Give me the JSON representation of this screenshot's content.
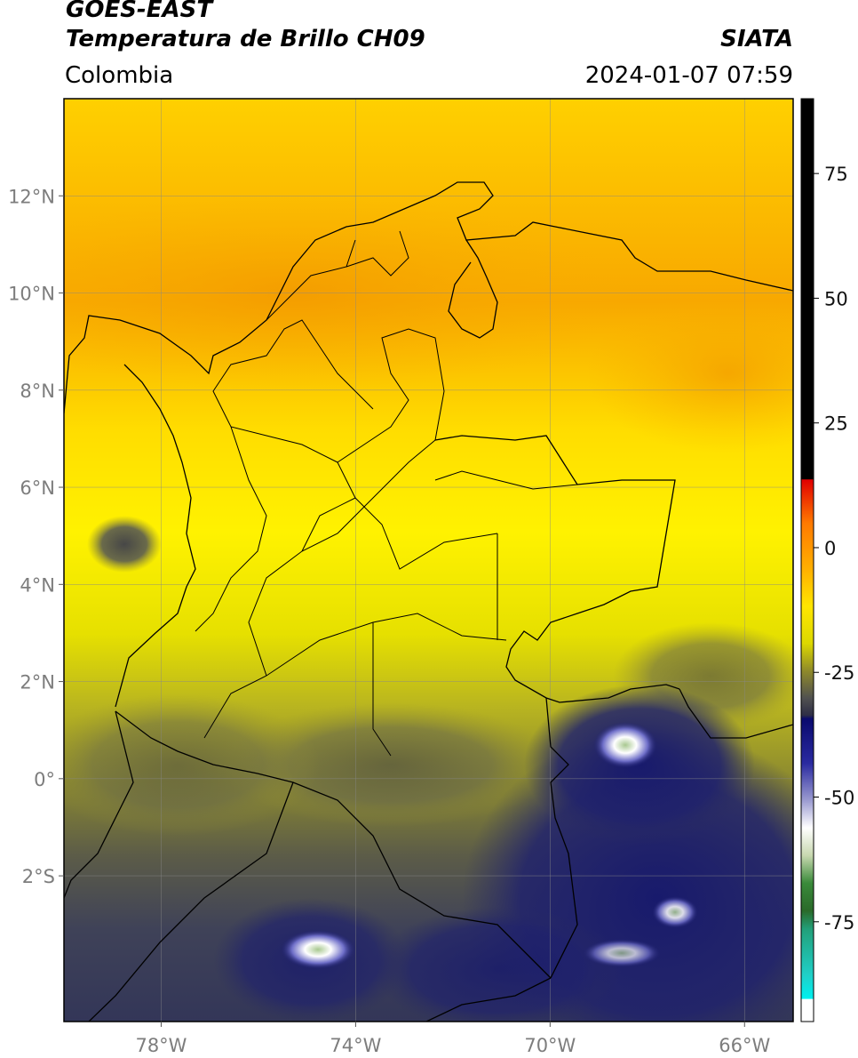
{
  "header": {
    "satellite": "GOES-EAST",
    "product": "Temperatura de Brillo CH09",
    "org": "SIATA",
    "region": "Colombia",
    "datetime": "2024-01-07 07:59"
  },
  "map": {
    "lon_range": [
      -80,
      -65
    ],
    "lat_range": [
      -5,
      14
    ],
    "lon_ticks": [
      {
        "value": -78,
        "label": "78°W"
      },
      {
        "value": -74,
        "label": "74°W"
      },
      {
        "value": -70,
        "label": "70°W"
      },
      {
        "value": -66,
        "label": "66°W"
      }
    ],
    "lat_ticks": [
      {
        "value": 12,
        "label": "12°N"
      },
      {
        "value": 10,
        "label": "10°N"
      },
      {
        "value": 8,
        "label": "8°N"
      },
      {
        "value": 6,
        "label": "6°N"
      },
      {
        "value": 4,
        "label": "4°N"
      },
      {
        "value": 2,
        "label": "2°N"
      },
      {
        "value": 0,
        "label": "0°"
      },
      {
        "value": -2,
        "label": "2°S"
      }
    ],
    "grid": true,
    "colors": {
      "orange": "#f7a800",
      "yellow": "#ffe600",
      "olive": "#8f8a2a",
      "grey": "#4b4b4b",
      "navy": "#1c1e70",
      "border": "#000000",
      "grid": "#888888"
    }
  },
  "colorbar": {
    "range": [
      -95,
      90
    ],
    "ticks": [
      {
        "value": 75,
        "label": "75"
      },
      {
        "value": 50,
        "label": "50"
      },
      {
        "value": 25,
        "label": "25"
      },
      {
        "value": 0,
        "label": "0"
      },
      {
        "value": -25,
        "label": "-25"
      },
      {
        "value": -50,
        "label": "-50"
      },
      {
        "value": -75,
        "label": "-75"
      }
    ]
  }
}
